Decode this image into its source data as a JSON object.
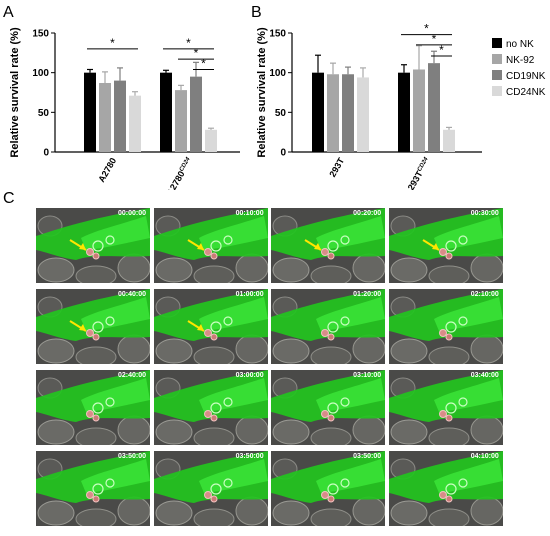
{
  "panels": {
    "a": "A",
    "b": "B",
    "c": "C"
  },
  "legend": [
    {
      "name": "no NK",
      "color": "#000000"
    },
    {
      "name": "NK-92",
      "color": "#a6a6a6"
    },
    {
      "name": "CD19NK",
      "color": "#7f7f7f"
    },
    {
      "name": "CD24NK",
      "color": "#d9d9d9"
    }
  ],
  "chart_data": [
    {
      "type": "bar",
      "panel": "A",
      "ylabel": "Relative survival rate (%)",
      "ylim": [
        0,
        150
      ],
      "yticks": [
        "0",
        "50",
        "100",
        "150"
      ],
      "categories": [
        {
          "label": "A2780",
          "sup": ""
        },
        {
          "label": "A2780",
          "sup": "CD24"
        }
      ],
      "series": [
        {
          "name": "no NK",
          "values": [
            100,
            100
          ],
          "errors": [
            4,
            3
          ]
        },
        {
          "name": "NK-92",
          "values": [
            87,
            78
          ],
          "errors": [
            14,
            6
          ]
        },
        {
          "name": "CD19NK",
          "values": [
            90,
            95
          ],
          "errors": [
            16,
            18
          ]
        },
        {
          "name": "CD24NK",
          "values": [
            71,
            28
          ],
          "errors": [
            5,
            2
          ]
        }
      ],
      "significance": [
        {
          "label": "*",
          "group": 0,
          "from": 0,
          "to": 3,
          "y": 130
        },
        {
          "label": "*",
          "group": 1,
          "from": 0,
          "to": 3,
          "y": 130
        },
        {
          "label": "*",
          "group": 1,
          "from": 1,
          "to": 3,
          "y": 117
        },
        {
          "label": "*",
          "group": 1,
          "from": 2,
          "to": 3,
          "y": 104
        }
      ]
    },
    {
      "type": "bar",
      "panel": "B",
      "ylabel": "Relative survival rate (%)",
      "ylim": [
        0,
        150
      ],
      "yticks": [
        "0",
        "50",
        "100",
        "150"
      ],
      "categories": [
        {
          "label": "293T",
          "sup": ""
        },
        {
          "label": "293T",
          "sup": "CD24"
        }
      ],
      "series": [
        {
          "name": "no NK",
          "values": [
            100,
            100
          ],
          "errors": [
            22,
            10
          ]
        },
        {
          "name": "NK-92",
          "values": [
            98,
            104
          ],
          "errors": [
            14,
            30
          ]
        },
        {
          "name": "CD19NK",
          "values": [
            98,
            112
          ],
          "errors": [
            9,
            15
          ]
        },
        {
          "name": "CD24NK",
          "values": [
            94,
            28
          ],
          "errors": [
            12,
            3
          ]
        }
      ],
      "significance": [
        {
          "label": "*",
          "group": 1,
          "from": 0,
          "to": 3,
          "y": 148
        },
        {
          "label": "*",
          "group": 1,
          "from": 1,
          "to": 3,
          "y": 135
        },
        {
          "label": "*",
          "group": 1,
          "from": 2,
          "to": 3,
          "y": 121
        }
      ]
    }
  ],
  "timelapse": {
    "timestamps": [
      "00:00:00",
      "00:10:00",
      "00:20:00",
      "00:30:00",
      "00:40:00",
      "01:00:00",
      "01:20:00",
      "02:10:00",
      "02:40:00",
      "03:00:00",
      "03:10:00",
      "03:40:00",
      "03:50:00",
      "03:50:00",
      "03:50:00",
      "04:10:00"
    ]
  }
}
